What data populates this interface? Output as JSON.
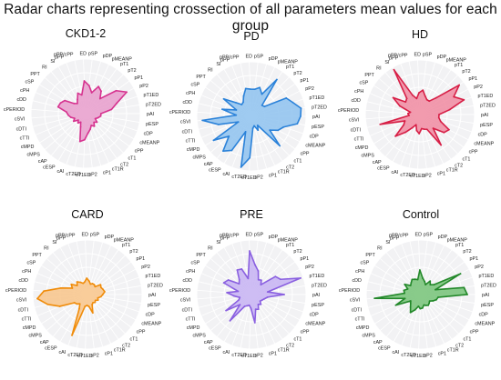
{
  "title": "Radar charts representing crossection of all parameters mean values for each group",
  "axes": [
    "pSP",
    "pDP",
    "pMEANP",
    "pT1",
    "pT2",
    "pP1",
    "pP2",
    "pT1ED",
    "pT2ED",
    "pAI",
    "pESP",
    "cDP",
    "cMEANP",
    "cPP",
    "cT1",
    "cT2",
    "cT1R",
    "cP1",
    "cP2",
    "cT1ED",
    "cT2ED",
    "cAI",
    "cESP",
    "cAP",
    "cMPS",
    "cMPD",
    "cTTI",
    "cDTI",
    "cSVI",
    "cPERIOD",
    "cDD",
    "cPH",
    "cSP",
    "PPT",
    "RI",
    "SI",
    "pPP",
    "pPP/cPP",
    "ED"
  ],
  "chart_data": [
    {
      "type": "radar",
      "title": "CKD1-2",
      "color": "#d6338f",
      "fill": "#e89ccb",
      "series": [
        {
          "values": [
            0.52,
            0.4,
            0.55,
            0.5,
            0.38,
            0.7,
            0.85,
            0.6,
            0.48,
            0.28,
            0.28,
            0.24,
            0.2,
            0.26,
            0.22,
            0.28,
            0.24,
            0.3,
            0.36,
            0.48,
            0.52,
            0.26,
            0.18,
            0.22,
            0.18,
            0.26,
            0.22,
            0.28,
            0.32,
            0.35,
            0.52,
            0.5,
            0.45,
            0.28,
            0.24,
            0.3,
            0.4,
            0.35,
            0.6
          ]
        }
      ]
    },
    {
      "type": "radar",
      "title": "PD",
      "color": "#2b82d9",
      "fill": "#8ec2ef",
      "series": [
        {
          "values": [
            0.5,
            0.55,
            0.45,
            0.82,
            0.28,
            0.3,
            0.72,
            0.8,
            0.92,
            0.9,
            0.85,
            0.62,
            0.55,
            0.42,
            0.75,
            0.2,
            0.28,
            0.18,
            0.22,
            0.76,
            0.95,
            0.3,
            0.72,
            0.82,
            0.55,
            0.82,
            0.26,
            0.62,
            0.9,
            0.28,
            0.55,
            0.3,
            0.6,
            0.38,
            0.28,
            0.3,
            0.4,
            0.52,
            0.5
          ]
        }
      ]
    },
    {
      "type": "radar",
      "title": "HD",
      "color": "#d71f46",
      "fill": "#f08aa0",
      "series": [
        {
          "values": [
            0.45,
            0.35,
            0.3,
            0.3,
            0.42,
            0.9,
            0.7,
            0.85,
            0.55,
            0.35,
            0.35,
            0.4,
            0.6,
            0.55,
            0.35,
            0.68,
            0.3,
            0.28,
            0.26,
            0.35,
            0.3,
            0.2,
            0.28,
            0.42,
            0.6,
            0.35,
            0.3,
            0.75,
            0.2,
            0.22,
            0.18,
            0.4,
            0.58,
            0.35,
            0.38,
            0.95,
            0.38,
            0.3,
            0.4
          ]
        }
      ]
    },
    {
      "type": "radar",
      "title": "CARD",
      "color": "#f08c0a",
      "fill": "#f8c488",
      "series": [
        {
          "values": [
            0.25,
            0.2,
            0.22,
            0.22,
            0.2,
            0.3,
            0.28,
            0.3,
            0.32,
            0.28,
            0.25,
            0.2,
            0.22,
            0.18,
            0.2,
            0.18,
            0.2,
            0.35,
            0.22,
            0.2,
            0.22,
            0.8,
            0.3,
            0.22,
            0.26,
            0.28,
            0.55,
            0.75,
            0.92,
            0.8,
            0.5,
            0.3,
            0.35,
            0.25,
            0.3,
            0.26,
            0.22,
            0.24,
            0.3
          ]
        }
      ]
    },
    {
      "type": "radar",
      "title": "PRE",
      "color": "#8a60e0",
      "fill": "#c6b1f2",
      "series": [
        {
          "values": [
            0.55,
            0.45,
            0.3,
            0.32,
            0.25,
            0.55,
            0.6,
            0.95,
            0.3,
            0.6,
            0.3,
            0.25,
            0.22,
            0.2,
            0.25,
            0.22,
            0.3,
            0.28,
            0.52,
            0.25,
            0.2,
            0.22,
            0.25,
            0.62,
            0.28,
            0.55,
            0.25,
            0.22,
            0.32,
            0.45,
            0.25,
            0.55,
            0.5,
            0.3,
            0.35,
            0.52,
            0.5,
            0.3,
            0.8
          ]
        }
      ]
    },
    {
      "type": "radar",
      "title": "Control",
      "color": "#23882a",
      "fill": "#74c276",
      "series": [
        {
          "values": [
            0.3,
            0.25,
            0.2,
            0.3,
            0.25,
            0.3,
            0.82,
            0.28,
            0.8,
            0.85,
            0.32,
            0.3,
            0.25,
            0.2,
            0.22,
            0.24,
            0.22,
            0.2,
            0.25,
            0.26,
            0.22,
            0.3,
            0.38,
            0.3,
            0.25,
            0.22,
            0.5,
            0.3,
            0.85,
            0.3,
            0.32,
            0.26,
            0.35,
            0.25,
            0.28,
            0.32,
            0.3,
            0.28,
            0.45
          ]
        }
      ]
    }
  ]
}
